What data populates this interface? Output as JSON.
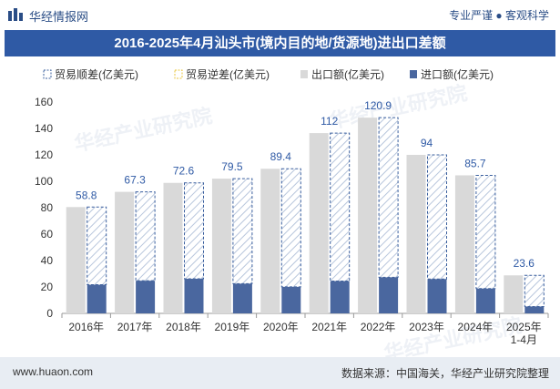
{
  "header": {
    "brand": "华经情报网",
    "slogan": "专业严谨 ● 客观科学"
  },
  "title": "2016-2025年4月汕头市(境内目的地/货源地)进出口差额",
  "legend": [
    {
      "label": "贸易顺差(亿美元)",
      "style": "hatch",
      "color": "#3a5f9e"
    },
    {
      "label": "贸易逆差(亿美元)",
      "style": "hatch",
      "color": "#e8c63c"
    },
    {
      "label": "出口额(亿美元)",
      "style": "solid",
      "color": "#d9d9d9"
    },
    {
      "label": "进口额(亿美元)",
      "style": "solid",
      "color": "#4a679f"
    }
  ],
  "chart_data": {
    "type": "bar",
    "title": "2016-2025年4月汕头市(境内目的地/货源地)进出口差额",
    "categories": [
      "2016年",
      "2017年",
      "2018年",
      "2019年",
      "2020年",
      "2021年",
      "2022年",
      "2023年",
      "2024年",
      "2025年\n1-4月"
    ],
    "series": [
      {
        "name": "贸易顺差(亿美元)",
        "values": [
          58.8,
          67.3,
          72.6,
          79.5,
          89.4,
          112,
          120.9,
          94,
          85.7,
          23.6
        ]
      },
      {
        "name": "出口额(亿美元)",
        "values": [
          80.5,
          92.0,
          98.8,
          102.0,
          109.5,
          136.5,
          148.2,
          120.0,
          104.5,
          28.8
        ]
      },
      {
        "name": "进口额(亿美元)",
        "values": [
          21.7,
          24.7,
          26.2,
          22.5,
          20.1,
          24.5,
          27.3,
          26.0,
          18.8,
          5.2
        ]
      }
    ],
    "ylim": [
      0,
      160
    ],
    "yticks": [
      0,
      20,
      40,
      60,
      80,
      100,
      120,
      140,
      160
    ],
    "colors": {
      "export": "#d9d9d9",
      "import": "#4a679f",
      "surplus_stroke": "#3a5f9e",
      "axis": "#999999"
    }
  },
  "footer": {
    "website": "www.huaon.com",
    "source": "数据来源：中国海关，华经产业研究院整理"
  },
  "watermark": "华经产业研究院"
}
